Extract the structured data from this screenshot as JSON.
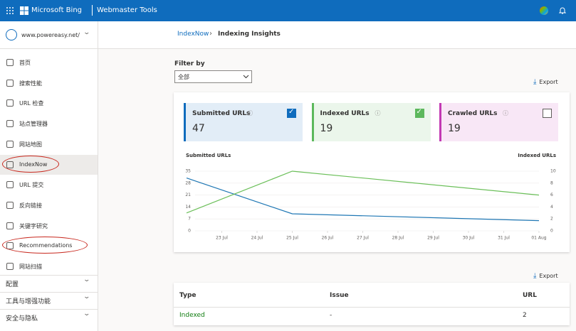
{
  "topbar": {
    "brand": "Microsoft Bing",
    "product": "Webmaster Tools"
  },
  "sidebar": {
    "site": "www.powereasy.net/",
    "items": [
      "首页",
      "搜索性能",
      "URL 检查",
      "站点管理器",
      "网站地图",
      "IndexNow",
      "URL 提交",
      "反向链接",
      "关键字研究",
      "Recommendations",
      "网站扫描"
    ],
    "sections": [
      "配置",
      "工具与增强功能",
      "安全与隐私"
    ]
  },
  "breadcrumb": {
    "parent": "IndexNow",
    "current": "Indexing Insights"
  },
  "filter": {
    "label": "Filter by",
    "value": "全部"
  },
  "export": "Export",
  "cards": [
    {
      "title": "Submitted URLs",
      "value": 47,
      "checked": true,
      "color": "#0f6cbd"
    },
    {
      "title": "Indexed URLs",
      "value": 19,
      "checked": true,
      "color": "#5cb85c"
    },
    {
      "title": "Crawled URLs",
      "value": 19,
      "checked": false,
      "color": "#c239b3"
    }
  ],
  "chart_data": {
    "type": "line",
    "y_label": "Submitted URLs",
    "y2_label": "Indexed URLs",
    "x": [
      "22 Jul",
      "25 Jul",
      "01 Aug"
    ],
    "xlim": [
      "22 Jul",
      "01 Aug"
    ],
    "xticks": [
      "23 Jul",
      "24 Jul",
      "25 Jul",
      "26 Jul",
      "27 Jul",
      "28 Jul",
      "29 Jul",
      "30 Jul",
      "31 Jul",
      "01 Aug"
    ],
    "ylim": [
      0,
      35
    ],
    "yticks": [
      0,
      7,
      14,
      21,
      28,
      35
    ],
    "y2lim": [
      0,
      10
    ],
    "y2ticks": [
      0,
      2,
      4,
      6,
      8,
      10
    ],
    "grid": true,
    "series": [
      {
        "color": "#1f77b4",
        "values": [
          31,
          10,
          6
        ]
      },
      {
        "color": "#6bbf59",
        "values": [
          3,
          10,
          6
        ],
        "axis": "y2"
      }
    ]
  },
  "table": {
    "columns": [
      "Type",
      "Issue",
      "URL"
    ],
    "rows": [
      [
        "Indexed",
        "-",
        2
      ]
    ]
  }
}
